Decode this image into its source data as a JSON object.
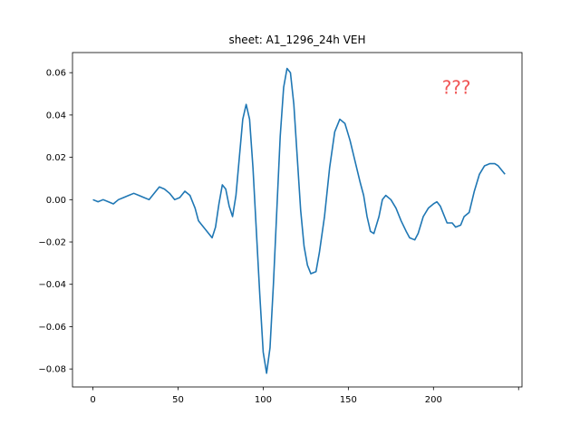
{
  "chart_data": {
    "type": "line",
    "title": "sheet: A1_1296_24h VEH",
    "xlabel": "",
    "ylabel": "",
    "xlim": [
      -12,
      252
    ],
    "ylim": [
      -0.0885,
      0.0695
    ],
    "x_ticks": [
      0,
      50,
      100,
      150,
      200,
      250
    ],
    "x_tick_labels": [
      "0",
      "50",
      "100",
      "150",
      "200",
      ""
    ],
    "y_ticks": [
      -0.08,
      -0.06,
      -0.04,
      -0.02,
      0.0,
      0.02,
      0.04,
      0.06
    ],
    "y_tick_labels": [
      "−0.08",
      "−0.06",
      "−0.04",
      "−0.02",
      "0.00",
      "0.02",
      "0.04",
      "0.06"
    ],
    "grid": false,
    "legend": "none",
    "series": [
      {
        "color": "#1f77b4",
        "points": [
          [
            0,
            0.0
          ],
          [
            3,
            -0.001
          ],
          [
            6,
            0.0
          ],
          [
            9,
            -0.001
          ],
          [
            12,
            -0.002
          ],
          [
            15,
            0.0
          ],
          [
            18,
            0.001
          ],
          [
            21,
            0.002
          ],
          [
            24,
            0.003
          ],
          [
            27,
            0.002
          ],
          [
            30,
            0.001
          ],
          [
            33,
            0.0
          ],
          [
            36,
            0.003
          ],
          [
            39,
            0.006
          ],
          [
            42,
            0.005
          ],
          [
            45,
            0.003
          ],
          [
            48,
            0.0
          ],
          [
            51,
            0.001
          ],
          [
            54,
            0.004
          ],
          [
            57,
            0.002
          ],
          [
            60,
            -0.004
          ],
          [
            62,
            -0.01
          ],
          [
            64,
            -0.012
          ],
          [
            67,
            -0.015
          ],
          [
            70,
            -0.018
          ],
          [
            72,
            -0.013
          ],
          [
            74,
            -0.002
          ],
          [
            76,
            0.007
          ],
          [
            78,
            0.005
          ],
          [
            80,
            -0.003
          ],
          [
            82,
            -0.008
          ],
          [
            84,
            0.002
          ],
          [
            86,
            0.02
          ],
          [
            88,
            0.038
          ],
          [
            90,
            0.045
          ],
          [
            92,
            0.038
          ],
          [
            94,
            0.015
          ],
          [
            96,
            -0.015
          ],
          [
            98,
            -0.045
          ],
          [
            100,
            -0.072
          ],
          [
            102,
            -0.082
          ],
          [
            104,
            -0.07
          ],
          [
            106,
            -0.04
          ],
          [
            108,
            -0.005
          ],
          [
            110,
            0.03
          ],
          [
            112,
            0.053
          ],
          [
            114,
            0.062
          ],
          [
            116,
            0.06
          ],
          [
            118,
            0.045
          ],
          [
            120,
            0.02
          ],
          [
            122,
            -0.005
          ],
          [
            124,
            -0.022
          ],
          [
            126,
            -0.031
          ],
          [
            128,
            -0.035
          ],
          [
            131,
            -0.034
          ],
          [
            133,
            -0.025
          ],
          [
            136,
            -0.008
          ],
          [
            139,
            0.015
          ],
          [
            142,
            0.032
          ],
          [
            145,
            0.038
          ],
          [
            148,
            0.036
          ],
          [
            151,
            0.028
          ],
          [
            154,
            0.018
          ],
          [
            157,
            0.008
          ],
          [
            159,
            0.002
          ],
          [
            161,
            -0.008
          ],
          [
            163,
            -0.015
          ],
          [
            165,
            -0.016
          ],
          [
            168,
            -0.008
          ],
          [
            170,
            0.0
          ],
          [
            172,
            0.002
          ],
          [
            175,
            0.0
          ],
          [
            178,
            -0.004
          ],
          [
            181,
            -0.01
          ],
          [
            184,
            -0.015
          ],
          [
            186,
            -0.018
          ],
          [
            189,
            -0.019
          ],
          [
            191,
            -0.016
          ],
          [
            194,
            -0.008
          ],
          [
            197,
            -0.004
          ],
          [
            200,
            -0.002
          ],
          [
            202,
            -0.001
          ],
          [
            204,
            -0.003
          ],
          [
            206,
            -0.007
          ],
          [
            208,
            -0.011
          ],
          [
            211,
            -0.011
          ],
          [
            213,
            -0.013
          ],
          [
            216,
            -0.012
          ],
          [
            218,
            -0.008
          ],
          [
            221,
            -0.006
          ],
          [
            224,
            0.004
          ],
          [
            227,
            0.012
          ],
          [
            230,
            0.016
          ],
          [
            233,
            0.017
          ],
          [
            236,
            0.017
          ],
          [
            238,
            0.016
          ],
          [
            240,
            0.014
          ],
          [
            242,
            0.012
          ]
        ]
      }
    ],
    "annotations": [
      {
        "text": "???",
        "x": 205,
        "y": 0.05,
        "color": "#ee4444"
      }
    ]
  }
}
